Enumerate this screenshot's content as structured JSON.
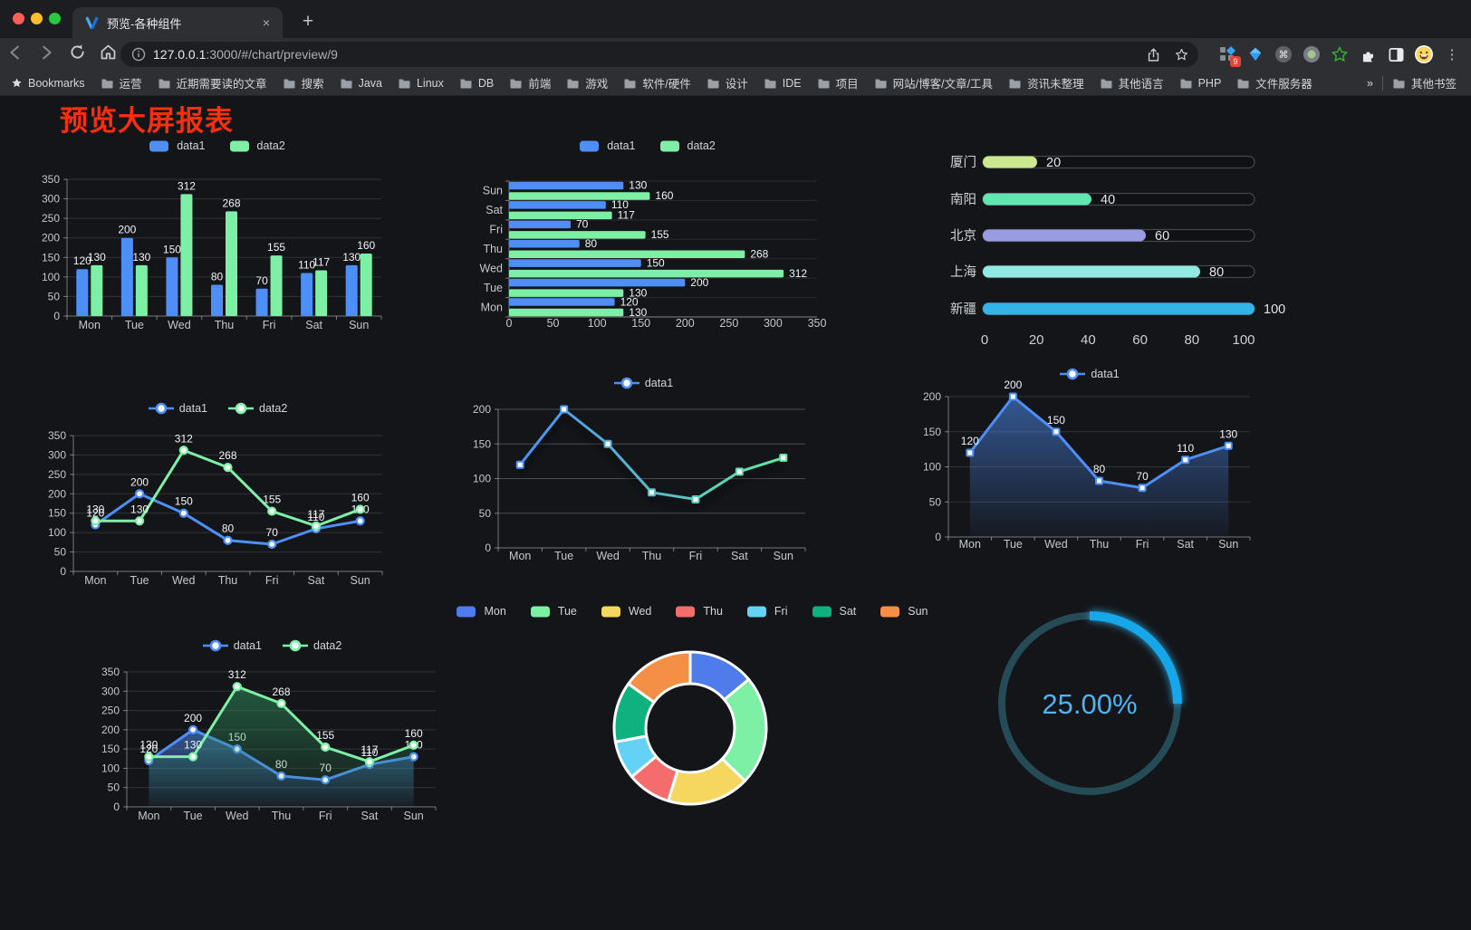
{
  "browser": {
    "tab": {
      "title": "预览-各种组件",
      "close_glyph": "×",
      "new_tab_glyph": "+"
    },
    "url": {
      "host": "127.0.0.1",
      "rest": ":3000/#/chart/preview/9"
    },
    "extension_badge": "9",
    "bookmarks_bar": {
      "bookmarks_label": "Bookmarks",
      "folders": [
        "运营",
        "近期需要读的文章",
        "搜索",
        "Java",
        "Linux",
        "DB",
        "前端",
        "游戏",
        "软件/硬件",
        "设计",
        "IDE",
        "项目",
        "网站/博客/文章/工具",
        "资讯未整理",
        "其他语言",
        "PHP",
        "文件服务器"
      ],
      "overflow_glyph": "»",
      "other_bookmarks_label": "其他书签"
    }
  },
  "page": {
    "title": "预览大屏报表",
    "title_color": "#F92F0E"
  },
  "chart_data": [
    {
      "id": "grouped-bar",
      "type": "bar",
      "legend_marker": "rect",
      "categories": [
        "Mon",
        "Tue",
        "Wed",
        "Thu",
        "Fri",
        "Sat",
        "Sun"
      ],
      "series": [
        {
          "name": "data1",
          "color": "#4E8FF7",
          "values": [
            120,
            200,
            150,
            80,
            70,
            110,
            130
          ]
        },
        {
          "name": "data2",
          "color": "#7DF0A6",
          "values": [
            130,
            130,
            312,
            268,
            155,
            117,
            160
          ]
        }
      ],
      "ylim": [
        0,
        350
      ],
      "ytick": 50,
      "value_labels": true
    },
    {
      "id": "horizontal-bar",
      "type": "hbar",
      "legend_marker": "rect",
      "categories_top_to_bottom": [
        "Sun",
        "Sat",
        "Fri",
        "Thu",
        "Wed",
        "Tue",
        "Mon"
      ],
      "series": [
        {
          "name": "data1",
          "color": "#4E8FF7",
          "values": [
            130,
            110,
            70,
            80,
            150,
            200,
            120
          ]
        },
        {
          "name": "data2",
          "color": "#7DF0A6",
          "values": [
            160,
            117,
            155,
            268,
            312,
            130,
            130
          ]
        }
      ],
      "xlim": [
        0,
        350
      ],
      "xtick": 50,
      "value_labels": true
    },
    {
      "id": "progress-bars",
      "type": "progress",
      "rows": [
        {
          "label": "厦门",
          "value": 20,
          "color": "#CDE98F"
        },
        {
          "label": "南阳",
          "value": 40,
          "color": "#62E6AF"
        },
        {
          "label": "北京",
          "value": 60,
          "color": "#999CE3"
        },
        {
          "label": "上海",
          "value": 80,
          "color": "#91E9E2"
        },
        {
          "label": "新疆",
          "value": 100,
          "color": "#32B4E9"
        }
      ],
      "xlim": [
        0,
        100
      ],
      "xticks": [
        0,
        20,
        40,
        60,
        80,
        100
      ]
    },
    {
      "id": "line-two-series",
      "type": "line",
      "legend_marker": "line",
      "marker": "circle",
      "categories": [
        "Mon",
        "Tue",
        "Wed",
        "Thu",
        "Fri",
        "Sat",
        "Sun"
      ],
      "series": [
        {
          "name": "data1",
          "color": "#4E8FF7",
          "values": [
            120,
            200,
            150,
            80,
            70,
            110,
            130
          ]
        },
        {
          "name": "data2",
          "color": "#7DF0A6",
          "values": [
            130,
            130,
            312,
            268,
            155,
            117,
            160
          ]
        }
      ],
      "ylim": [
        0,
        350
      ],
      "ytick": 50,
      "value_labels": true
    },
    {
      "id": "line-gradient",
      "type": "line",
      "legend_marker": "line",
      "marker": "square",
      "shadow": true,
      "categories": [
        "Mon",
        "Tue",
        "Wed",
        "Thu",
        "Fri",
        "Sat",
        "Sun"
      ],
      "series": [
        {
          "name": "data1",
          "color": "#4E8FF7",
          "gradient": [
            "#4E8FF7",
            "#62E89E"
          ],
          "values": [
            120,
            200,
            150,
            80,
            70,
            110,
            130
          ]
        }
      ],
      "ylim": [
        0,
        200
      ],
      "ytick": 50,
      "value_labels": false
    },
    {
      "id": "line-area",
      "type": "line",
      "legend_marker": "line",
      "marker": "square",
      "categories": [
        "Mon",
        "Tue",
        "Wed",
        "Thu",
        "Fri",
        "Sat",
        "Sun"
      ],
      "series": [
        {
          "name": "data1",
          "color": "#4E8FF7",
          "area": true,
          "values": [
            120,
            200,
            150,
            80,
            70,
            110,
            130
          ]
        }
      ],
      "ylim": [
        0,
        200
      ],
      "ytick": 50,
      "value_labels": true
    },
    {
      "id": "area-two-series",
      "type": "line",
      "legend_marker": "line",
      "marker": "circle",
      "categories": [
        "Mon",
        "Tue",
        "Wed",
        "Thu",
        "Fri",
        "Sat",
        "Sun"
      ],
      "series": [
        {
          "name": "data1",
          "color": "#4E8FF7",
          "area": true,
          "values": [
            120,
            200,
            150,
            80,
            70,
            110,
            130
          ]
        },
        {
          "name": "data2",
          "color": "#7DF0A6",
          "area": true,
          "area_color": "#2E8F5C",
          "values": [
            130,
            130,
            312,
            268,
            155,
            117,
            160
          ]
        }
      ],
      "ylim": [
        0,
        350
      ],
      "ytick": 50,
      "value_labels": true
    },
    {
      "id": "donut",
      "type": "donut",
      "legend_marker": "rect",
      "items": [
        {
          "label": "Mon",
          "value": 120,
          "color": "#4E7CEA"
        },
        {
          "label": "Tue",
          "value": 200,
          "color": "#7DF0A6"
        },
        {
          "label": "Wed",
          "value": 150,
          "color": "#F5D65F"
        },
        {
          "label": "Thu",
          "value": 80,
          "color": "#F56C6C"
        },
        {
          "label": "Fri",
          "value": 70,
          "color": "#63D2F5"
        },
        {
          "label": "Sat",
          "value": 110,
          "color": "#0FB27E"
        },
        {
          "label": "Sun",
          "value": 130,
          "color": "#F58F45"
        }
      ]
    },
    {
      "id": "ring-gauge",
      "type": "gauge",
      "percent": 25,
      "value_label": "25.00%",
      "arc_color": "#17A7E9",
      "track_color": "#254B57",
      "text_color": "#4FB3F2"
    }
  ]
}
